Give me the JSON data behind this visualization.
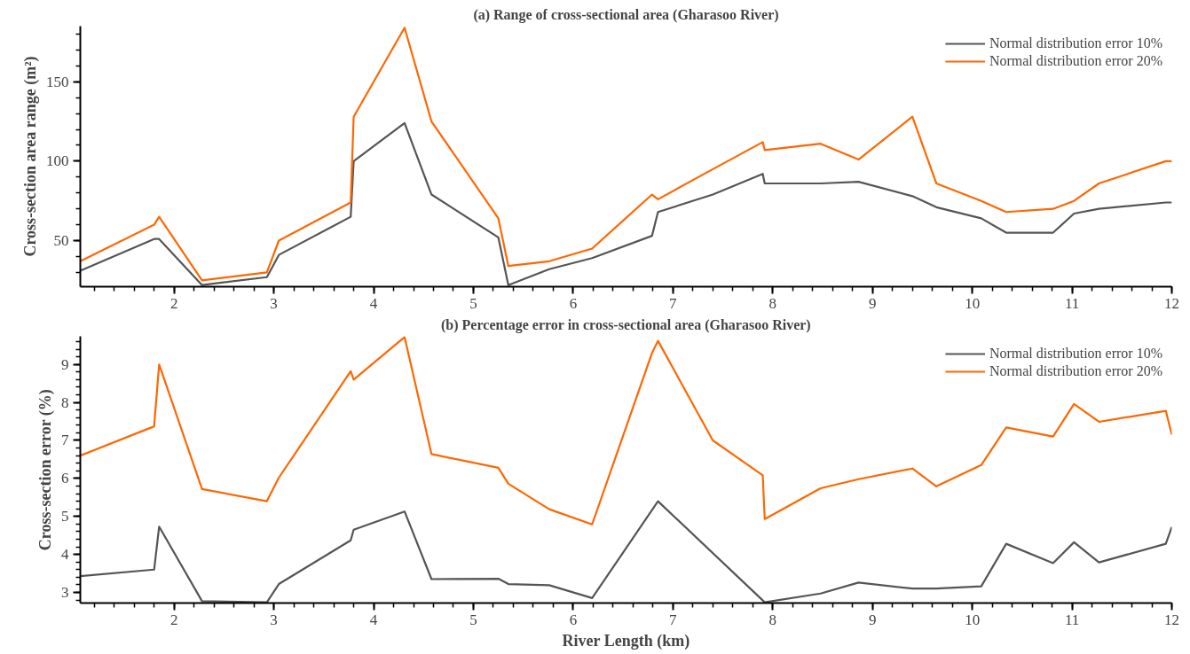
{
  "chart_data": [
    {
      "type": "line",
      "title": "(a) Range of cross-sectional area (Gharasoo River)",
      "ylabel": "Cross-section area range (m²)",
      "xlim": [
        1.06,
        12
      ],
      "xticks": [
        2,
        3,
        4,
        5,
        6,
        7,
        8,
        9,
        10,
        11,
        12
      ],
      "ylim": [
        21,
        185
      ],
      "yticks": [
        50,
        100,
        150
      ],
      "grid": false,
      "legend": "top right",
      "line_style": "solid",
      "marker": "none",
      "series": [
        {
          "name": "Normal distribution error 10%",
          "color": "#555555",
          "x": [
            1.06,
            1.8,
            1.85,
            2.28,
            2.93,
            3.05,
            3.77,
            3.8,
            4.31,
            4.58,
            5.25,
            5.35,
            5.76,
            6.19,
            6.79,
            6.85,
            7.4,
            7.9,
            7.92,
            8.48,
            8.86,
            9.4,
            9.64,
            10.09,
            10.34,
            10.81,
            11.02,
            11.27,
            11.94,
            12
          ],
          "values": [
            31,
            51,
            51,
            22,
            27,
            41,
            65,
            100,
            124,
            79,
            52,
            22,
            32,
            39,
            53,
            68,
            79,
            92,
            86,
            86,
            87,
            78,
            71,
            64,
            55,
            55,
            67,
            70,
            74,
            74
          ]
        },
        {
          "name": "Normal distribution error 20%",
          "color": "#ff6600",
          "x": [
            1.06,
            1.8,
            1.85,
            2.28,
            2.93,
            3.05,
            3.77,
            3.8,
            4.31,
            4.58,
            5.25,
            5.35,
            5.76,
            6.19,
            6.79,
            6.85,
            7.4,
            7.9,
            7.92,
            8.48,
            8.86,
            9.4,
            9.64,
            10.09,
            10.34,
            10.81,
            11.02,
            11.27,
            11.94,
            12
          ],
          "values": [
            37,
            60,
            65,
            25,
            30,
            50,
            74,
            128,
            184,
            125,
            64,
            34,
            37,
            45,
            79,
            76,
            95,
            112,
            107,
            111,
            101,
            128,
            86,
            75,
            68,
            70,
            75,
            86,
            100,
            100
          ]
        }
      ]
    },
    {
      "type": "line",
      "title": "(b) Percentage error in cross-sectional area (Gharasoo River)",
      "xlabel": "River Length (km)",
      "ylabel": "Cross-section error (%)",
      "xlim": [
        1.06,
        12
      ],
      "xticks": [
        2,
        3,
        4,
        5,
        6,
        7,
        8,
        9,
        10,
        11,
        12
      ],
      "ylim": [
        2.72,
        9.74
      ],
      "yticks": [
        3,
        4,
        5,
        6,
        7,
        8,
        9
      ],
      "grid": false,
      "legend": "top right",
      "line_style": "solid",
      "marker": "none",
      "series": [
        {
          "name": "Normal distribution error 10%",
          "color": "#555555",
          "x": [
            1.06,
            1.8,
            1.85,
            2.28,
            2.93,
            3.05,
            3.77,
            3.8,
            4.31,
            4.58,
            5.25,
            5.35,
            5.76,
            6.19,
            6.85,
            7.92,
            8.48,
            8.86,
            9.4,
            9.64,
            10.09,
            10.34,
            10.81,
            11.02,
            11.27,
            11.94,
            12
          ],
          "values": [
            3.43,
            3.6,
            4.73,
            2.77,
            2.74,
            3.22,
            4.37,
            4.65,
            5.13,
            3.35,
            3.36,
            3.22,
            3.19,
            2.85,
            5.4,
            2.74,
            2.97,
            3.26,
            3.1,
            3.1,
            3.16,
            4.28,
            3.77,
            4.32,
            3.79,
            4.28,
            4.72
          ]
        },
        {
          "name": "Normal distribution error 20%",
          "color": "#ff6600",
          "x": [
            1.06,
            1.8,
            1.85,
            2.28,
            2.93,
            3.05,
            3.77,
            3.8,
            4.31,
            4.58,
            5.25,
            5.35,
            5.76,
            6.19,
            6.79,
            6.85,
            7.4,
            7.9,
            7.92,
            8.48,
            8.86,
            9.4,
            9.64,
            10.09,
            10.34,
            10.81,
            11.02,
            11.27,
            11.94,
            12
          ],
          "values": [
            6.6,
            7.37,
            9.0,
            5.72,
            5.4,
            6.02,
            8.82,
            8.6,
            9.72,
            6.64,
            6.28,
            5.86,
            5.19,
            4.79,
            9.3,
            9.62,
            7.0,
            6.08,
            4.93,
            5.74,
            5.98,
            6.26,
            5.79,
            6.35,
            7.34,
            7.1,
            7.96,
            7.49,
            7.78,
            7.15
          ]
        }
      ]
    }
  ]
}
